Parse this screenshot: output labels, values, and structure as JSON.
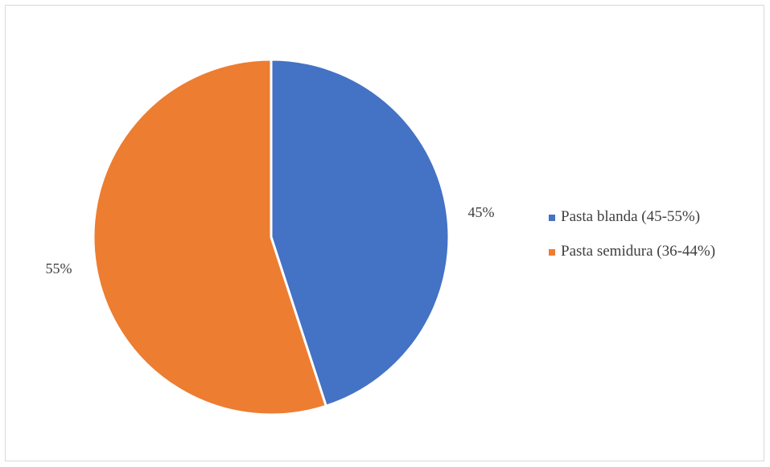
{
  "chart_data": {
    "type": "pie",
    "title": "",
    "categories": [
      "Pasta blanda (45-55%)",
      "Pasta semidura (36-44%)"
    ],
    "values": [
      45,
      55
    ],
    "data_labels": [
      "45%",
      "55%"
    ],
    "colors": [
      "#4472c4",
      "#ed7d31"
    ],
    "legend_position": "right",
    "start_angle": "12 o'clock, clockwise"
  }
}
